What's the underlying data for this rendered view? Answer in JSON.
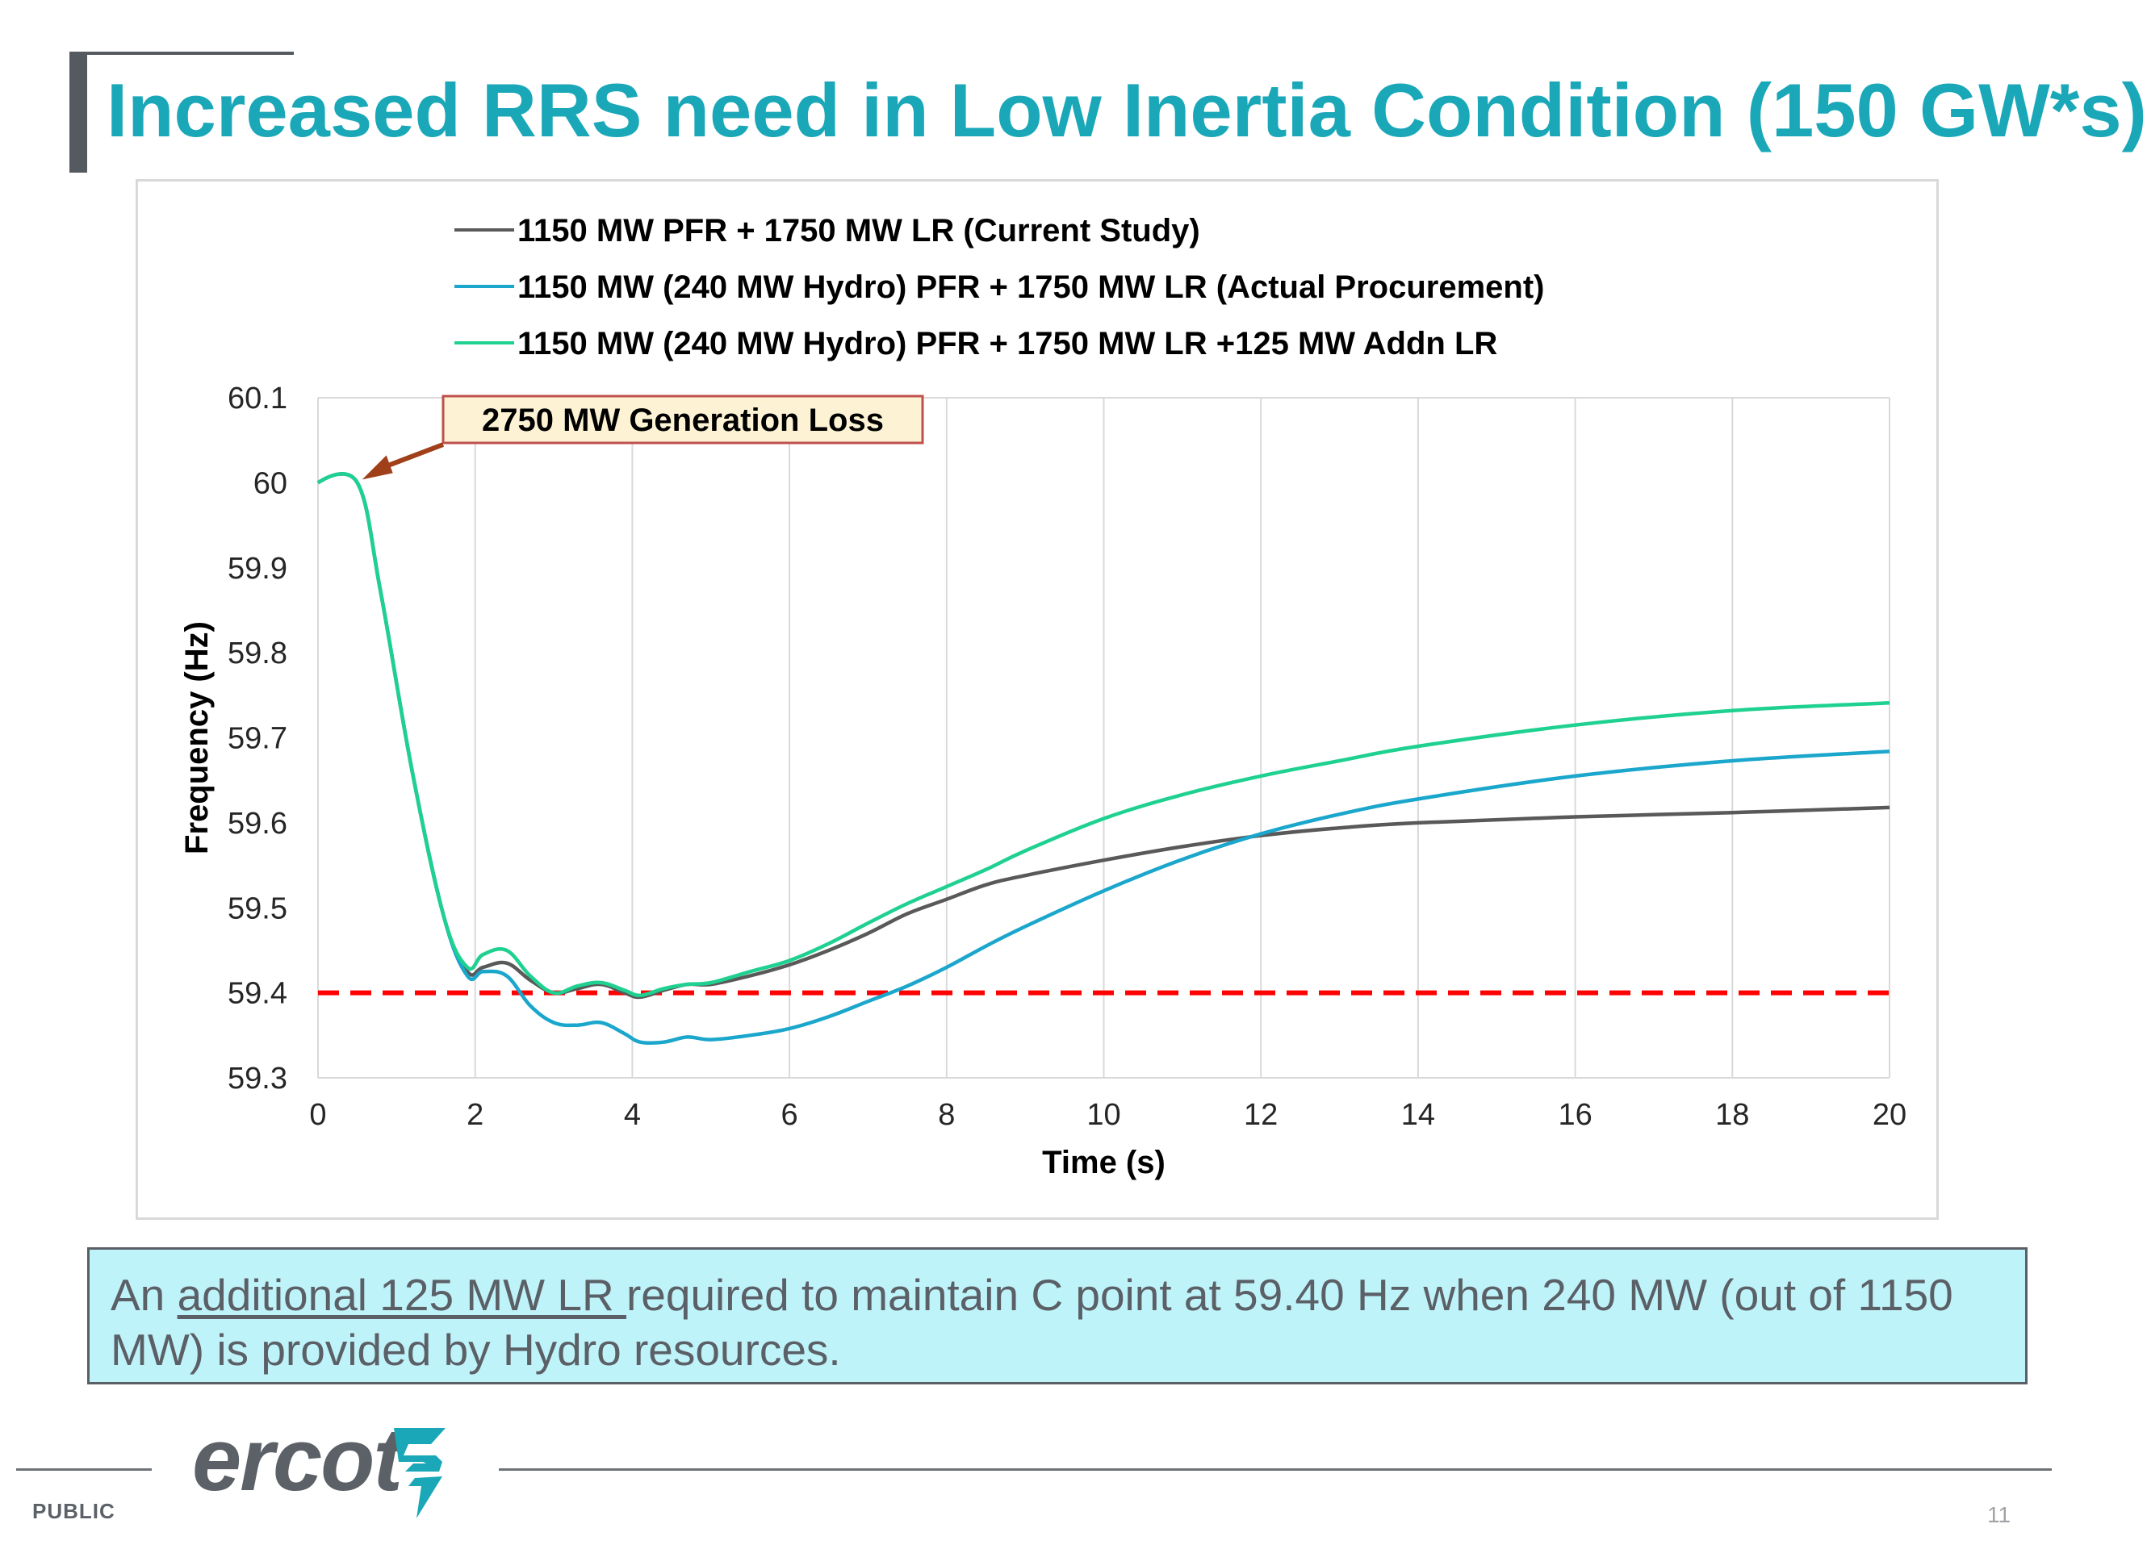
{
  "slide": {
    "title": "Increased RRS need in Low Inertia Condition (150 GW*s)",
    "note": {
      "part1": "An ",
      "underlined": "additional 125 MW LR ",
      "part2": " required to maintain C point at 59.40 Hz when 240 MW (out of 1150 MW) is provided by Hydro resources."
    },
    "footer": {
      "logo_text": "ercot",
      "classification": "PUBLIC",
      "page_number": "11"
    }
  },
  "chart_data": {
    "type": "line",
    "title": "",
    "xlabel": "Time (s)",
    "ylabel": "Frequency (Hz)",
    "xlim": [
      0,
      20
    ],
    "ylim": [
      59.3,
      60.1
    ],
    "xticks": [
      0,
      2,
      4,
      6,
      8,
      10,
      12,
      14,
      16,
      18,
      20
    ],
    "yticks": [
      59.3,
      59.4,
      59.5,
      59.6,
      59.7,
      59.8,
      59.9,
      60,
      60.1
    ],
    "ytick_labels": [
      "59.3",
      "59.4",
      "59.5",
      "59.6",
      "59.7",
      "59.8",
      "59.9",
      "60",
      "60.1"
    ],
    "grid": "vertical",
    "legend_position": "top",
    "annotation": {
      "text": "2750 MW Generation Loss",
      "points_to": [
        0.5,
        60.0
      ]
    },
    "reference_line": {
      "y": 59.4,
      "color": "#ff0000",
      "style": "dashed"
    },
    "series": [
      {
        "name": "1150 MW PFR + 1750 MW LR (Current Study)",
        "color": "#595959",
        "x": [
          0,
          0.5,
          0.8,
          1.2,
          1.6,
          1.9,
          2.1,
          2.4,
          2.7,
          3.0,
          3.3,
          3.6,
          3.9,
          4.1,
          4.4,
          4.7,
          5.0,
          5.5,
          6.0,
          6.5,
          7.0,
          7.5,
          8.0,
          8.5,
          9.0,
          10.0,
          11.0,
          12.0,
          13.0,
          14.0,
          16.0,
          18.0,
          20.0
        ],
        "values": [
          60.0,
          60.0,
          59.87,
          59.66,
          59.49,
          59.425,
          59.43,
          59.435,
          59.415,
          59.4,
          59.405,
          59.41,
          59.4,
          59.395,
          59.403,
          59.41,
          59.41,
          59.42,
          59.433,
          59.45,
          59.47,
          59.493,
          59.51,
          59.527,
          59.538,
          59.556,
          59.572,
          59.585,
          59.594,
          59.6,
          59.607,
          59.612,
          59.618
        ]
      },
      {
        "name": "1150 MW (240  MW Hydro) PFR + 1750 MW LR (Actual Procurement)",
        "color": "#1ba6cc",
        "x": [
          0,
          0.5,
          0.8,
          1.2,
          1.6,
          1.9,
          2.1,
          2.4,
          2.7,
          3.0,
          3.3,
          3.6,
          3.9,
          4.1,
          4.4,
          4.7,
          5.0,
          5.5,
          6.0,
          6.5,
          7.0,
          7.5,
          8.0,
          8.5,
          9.0,
          10.0,
          11.0,
          12.0,
          13.0,
          14.0,
          16.0,
          18.0,
          20.0
        ],
        "values": [
          60.0,
          60.0,
          59.87,
          59.66,
          59.49,
          59.42,
          59.425,
          59.42,
          59.385,
          59.365,
          59.362,
          59.365,
          59.352,
          59.342,
          59.342,
          59.348,
          59.345,
          59.35,
          59.358,
          59.372,
          59.39,
          59.408,
          59.43,
          59.455,
          59.478,
          59.52,
          59.557,
          59.587,
          59.61,
          59.628,
          59.655,
          59.673,
          59.684
        ]
      },
      {
        "name": "1150 MW (240 MW Hydro) PFR + 1750 MW LR +125 MW Addn LR",
        "color": "#1fd191",
        "x": [
          0,
          0.5,
          0.8,
          1.2,
          1.6,
          1.9,
          2.1,
          2.4,
          2.7,
          3.0,
          3.3,
          3.6,
          3.9,
          4.1,
          4.4,
          4.7,
          5.0,
          5.5,
          6.0,
          6.5,
          7.0,
          7.5,
          8.0,
          8.5,
          9.0,
          10.0,
          11.0,
          12.0,
          13.0,
          14.0,
          16.0,
          18.0,
          20.0
        ],
        "values": [
          60.0,
          60.0,
          59.87,
          59.66,
          59.49,
          59.43,
          59.445,
          59.45,
          59.42,
          59.4,
          59.408,
          59.412,
          59.403,
          59.397,
          59.405,
          59.41,
          59.412,
          59.425,
          59.438,
          59.458,
          59.482,
          59.505,
          59.525,
          59.545,
          59.567,
          59.605,
          59.633,
          59.655,
          59.673,
          59.69,
          59.715,
          59.732,
          59.741
        ]
      }
    ]
  }
}
